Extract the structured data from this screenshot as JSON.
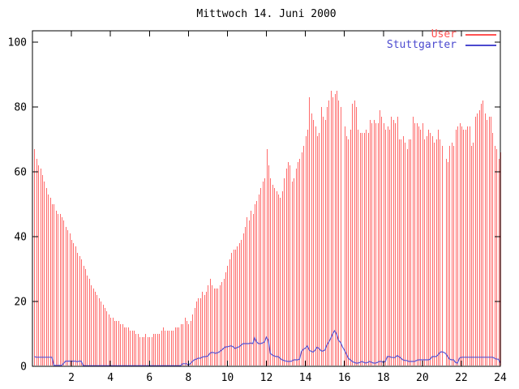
{
  "title": "Mittwoch 14. Juni 2000",
  "legend": {
    "items": [
      {
        "label": "User",
        "color": "#ff5252"
      },
      {
        "label": "Stuttgarter",
        "color": "#4b49cf"
      }
    ]
  },
  "colors": {
    "background": "#ffffff",
    "axis": "#000000",
    "user_bars": "#ff6b6b",
    "stuttgarter_line": "#5653d4"
  },
  "chart_data": {
    "type": "bar",
    "title": "Mittwoch 14. Juni 2000",
    "xlabel": "",
    "ylabel": "",
    "xlim": [
      0,
      24
    ],
    "ylim": [
      0,
      103.5
    ],
    "xticks": [
      2,
      4,
      6,
      8,
      10,
      12,
      14,
      16,
      18,
      20,
      22,
      24
    ],
    "yticks": [
      0,
      20,
      40,
      60,
      80,
      100
    ],
    "grid": false,
    "legend_position": "top-right",
    "x_unit": "hours",
    "x_start": 0.1,
    "x_step": 0.1,
    "gap_note": "zero values in User series are missing-data gaps (white stripes ~15.9h and ~21.1h)",
    "series": [
      {
        "name": "User",
        "type": "impulses",
        "values": [
          67,
          64,
          62,
          61,
          59,
          57,
          55,
          53,
          52,
          50,
          50,
          48,
          47,
          47,
          46,
          45,
          43,
          42,
          41,
          39,
          38,
          37,
          35,
          34,
          33,
          31,
          30,
          28,
          27,
          25,
          24,
          23,
          22,
          21,
          20,
          19,
          18,
          17,
          16,
          15,
          15,
          14,
          14,
          14,
          13,
          13,
          12,
          12,
          12,
          11,
          11,
          11,
          10,
          10,
          9,
          9,
          9,
          10,
          9,
          9,
          9,
          10,
          10,
          10,
          10,
          11,
          12,
          11,
          11,
          11,
          11,
          11,
          12,
          12,
          12,
          13,
          13,
          15,
          14,
          13,
          14,
          16,
          18,
          20,
          21,
          21,
          23,
          22,
          23,
          25,
          27,
          25,
          24,
          24,
          24,
          25,
          26,
          27,
          29,
          31,
          33,
          35,
          36,
          36,
          37,
          38,
          39,
          41,
          43,
          46,
          45,
          48,
          47,
          50,
          51,
          53,
          55,
          57,
          58,
          67,
          62,
          58,
          56,
          55,
          54,
          53,
          52,
          54,
          58,
          61,
          63,
          62,
          57,
          58,
          61,
          63,
          64,
          66,
          68,
          71,
          73,
          83,
          78,
          76,
          74,
          71,
          72,
          80,
          77,
          76,
          80,
          82,
          85,
          83,
          84,
          85,
          82,
          80,
          0,
          74,
          71,
          70,
          73,
          81,
          82,
          80,
          73,
          72,
          72,
          72,
          73,
          72,
          76,
          75,
          76,
          75,
          75,
          79,
          77,
          75,
          73,
          74,
          73,
          77,
          76,
          75,
          77,
          70,
          70,
          71,
          69,
          67,
          70,
          70,
          77,
          75,
          75,
          74,
          73,
          75,
          70,
          71,
          73,
          72,
          71,
          69,
          70,
          73,
          70,
          68,
          0,
          64,
          63,
          68,
          69,
          68,
          73,
          74,
          75,
          74,
          73,
          73,
          74,
          74,
          68,
          69,
          77,
          78,
          79,
          81,
          82,
          78,
          76,
          77,
          77,
          72,
          68,
          67,
          64,
          66
        ]
      },
      {
        "name": "Stuttgarter",
        "type": "line",
        "values": [
          3,
          2.8,
          2.8,
          2.8,
          2.8,
          2.8,
          2.8,
          2.8,
          2.8,
          2.8,
          0.3,
          0.3,
          0.3,
          0.3,
          0.3,
          0.9,
          1.6,
          1.6,
          1.6,
          1.6,
          1.6,
          1.6,
          1.4,
          1.6,
          1.6,
          0.3,
          0.2,
          0.2,
          0.2,
          0.2,
          0.2,
          0.2,
          0.2,
          0.2,
          0.2,
          0.2,
          0.2,
          0.2,
          0.2,
          0.2,
          0.2,
          0.2,
          0.2,
          0.2,
          0.2,
          0.2,
          0.2,
          0.2,
          0.2,
          0.2,
          0.2,
          0.2,
          0.2,
          0.2,
          0.2,
          0.2,
          0.2,
          0.2,
          0.2,
          0.2,
          0.2,
          0.2,
          0.2,
          0.2,
          0.2,
          0.2,
          0.2,
          0.2,
          0.2,
          0.2,
          0.2,
          0.2,
          0.2,
          0.2,
          0.2,
          0.2,
          0.8,
          0.8,
          0.8,
          0.4,
          0.8,
          1.5,
          2,
          2.2,
          2.5,
          2.5,
          2.8,
          3,
          3,
          3.2,
          4,
          4.3,
          4.2,
          4,
          4.2,
          4.5,
          5,
          5.5,
          6,
          6,
          6.2,
          6.3,
          6,
          5.5,
          5.8,
          6,
          6.5,
          7,
          7,
          7,
          7,
          7.2,
          7,
          8.8,
          7.5,
          7,
          7,
          7.2,
          7.5,
          9,
          8,
          4,
          3.5,
          3.2,
          3,
          3,
          2.5,
          2,
          1.8,
          1.6,
          1.5,
          1.5,
          1.6,
          2,
          2,
          2,
          2.2,
          4.6,
          5.3,
          5.6,
          6.3,
          5,
          4.6,
          4.4,
          5,
          5.9,
          5.5,
          4.8,
          4.7,
          5,
          6.5,
          7.5,
          8.6,
          10,
          11,
          10,
          8,
          7.4,
          6,
          5,
          3.8,
          2.5,
          2,
          1.5,
          1.2,
          1,
          1,
          1.2,
          1.5,
          1.2,
          1,
          1.2,
          1.5,
          1.2,
          1,
          1,
          1.2,
          1.5,
          1.5,
          1.2,
          1.5,
          3,
          3,
          2.8,
          2.7,
          2.7,
          3.3,
          3,
          2.5,
          2,
          1.8,
          1.8,
          1.5,
          1.5,
          1.5,
          1.5,
          1.8,
          2,
          2,
          2,
          2,
          2,
          2,
          2.2,
          3,
          3,
          3,
          3.5,
          4.3,
          4.5,
          4.3,
          3.9,
          3,
          2.2,
          2,
          2,
          1.2,
          1,
          2.5,
          2.8,
          2.8,
          2.8,
          2.8,
          2.8,
          2.8,
          2.8,
          2.8,
          2.8,
          2.8,
          2.8,
          2.8,
          2.8,
          2.8,
          2.8,
          2.8,
          2.8,
          2.5,
          2.2,
          2.2,
          1
        ]
      }
    ]
  }
}
